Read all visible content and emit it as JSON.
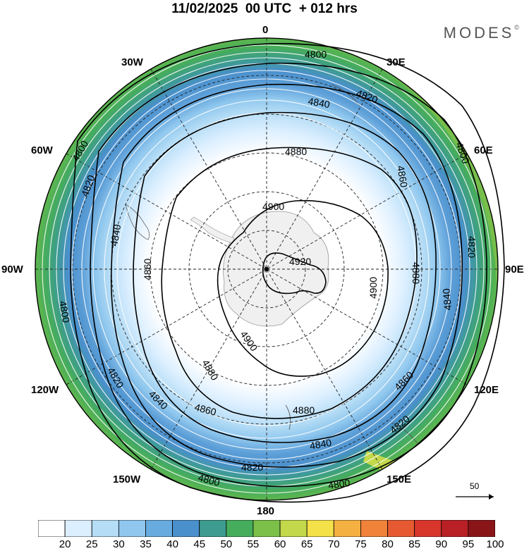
{
  "header": {
    "title": "11/02/2025  00 UTC  + 012 hrs",
    "brand": "MODES"
  },
  "longitude_labels": {
    "lon_0": "0",
    "lon_30e": "30E",
    "lon_60e": "60E",
    "lon_90e": "90E",
    "lon_120e": "120E",
    "lon_150e": "150E",
    "lon_180": "180",
    "lon_150w": "150W",
    "lon_120w": "120W",
    "lon_90w": "90W",
    "lon_60w": "60W",
    "lon_30w": "30W"
  },
  "contours": {
    "c4920": "4920",
    "c4900": "4900",
    "c4880": "4880",
    "c4860": "4860",
    "c4840": "4840",
    "c4820": "4820",
    "c4800": "4800"
  },
  "reference_vector": {
    "value": "50"
  },
  "colorbar": {
    "labels": [
      "20",
      "25",
      "30",
      "35",
      "40",
      "45",
      "50",
      "55",
      "60",
      "65",
      "70",
      "75",
      "80",
      "85",
      "90",
      "95",
      "100"
    ],
    "colors": [
      "#ffffff",
      "#dcefff",
      "#b6ddf6",
      "#8fc7ee",
      "#68acdf",
      "#4a90cc",
      "#3d9c8f",
      "#46ad5c",
      "#7cc04a",
      "#c3d84a",
      "#f4e049",
      "#f4b040",
      "#f0823a",
      "#e65a32",
      "#d8352b",
      "#b82025",
      "#8a1519"
    ]
  }
}
